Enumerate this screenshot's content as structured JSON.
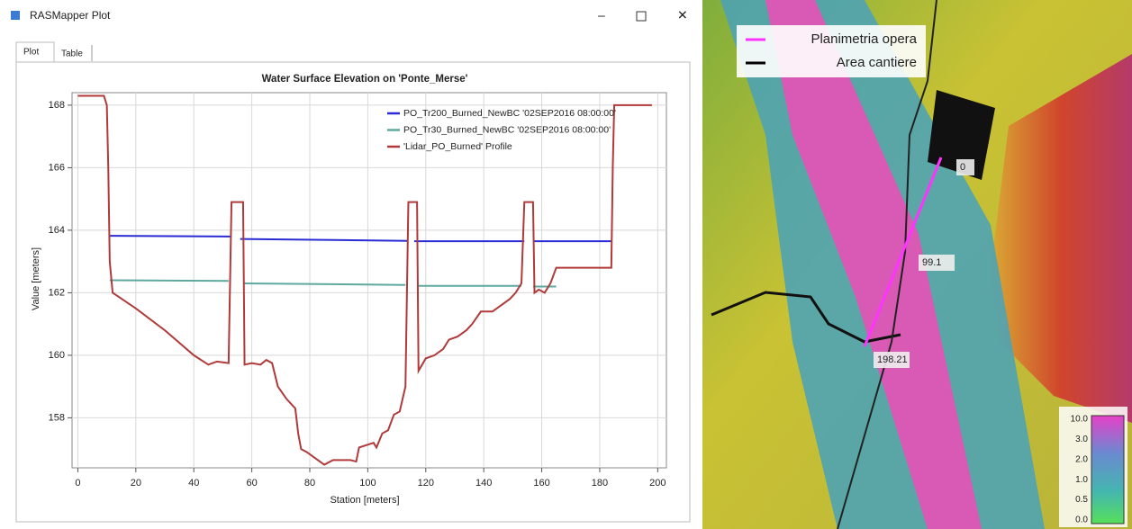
{
  "window": {
    "title": "RASMapper Plot",
    "tabs": [
      "Plot",
      "Table"
    ]
  },
  "chart_data": {
    "type": "line",
    "title": "Water Surface Elevation on 'Ponte_Merse'",
    "x_label": "Station [meters]",
    "y_label": "Value [meters]",
    "xlim": [
      -2,
      203
    ],
    "ylim": [
      156.4,
      168.4
    ],
    "xticks": [
      0,
      20,
      40,
      60,
      80,
      100,
      120,
      140,
      160,
      180,
      200
    ],
    "yticks": [
      158,
      160,
      162,
      164,
      166,
      168
    ],
    "grid": true,
    "legend": "upper right",
    "series": [
      {
        "name": "PO_Tr200_Burned_NewBC '02SEP2016 08:00:00'",
        "color": "#2b2bd6",
        "x": [
          11,
          53,
          53.5,
          56,
          114,
          114.5,
          116,
          154,
          154.5,
          157,
          184
        ],
        "values": [
          163.82,
          163.8,
          null,
          163.72,
          163.66,
          null,
          163.65,
          163.65,
          null,
          163.65,
          163.65
        ]
      },
      {
        "name": "PO_Tr30_Burned_NewBC '02SEP2016 08:00:00'",
        "color": "#5fa8a0",
        "x": [
          11,
          52,
          52.5,
          57,
          113,
          113.5,
          117,
          153,
          153.5,
          157,
          165
        ],
        "values": [
          162.4,
          162.38,
          null,
          162.3,
          162.25,
          null,
          162.22,
          162.22,
          null,
          162.2,
          162.2
        ]
      },
      {
        "name": "'Lidar_PO_Burned' Profile",
        "color": "#b03a3a",
        "x": [
          0,
          9,
          10,
          10.5,
          11,
          12,
          20,
          30,
          40,
          45,
          48,
          52,
          53,
          57,
          57.5,
          60,
          63,
          65,
          67,
          69,
          72,
          75,
          76,
          77,
          79,
          82,
          85,
          88,
          94,
          96,
          97,
          102,
          103,
          105,
          107,
          109,
          111,
          113,
          114,
          117,
          117.5,
          120,
          123,
          126,
          128,
          131,
          134,
          136,
          139,
          143,
          146,
          149,
          151,
          153,
          154,
          157,
          157.5,
          159,
          161,
          163,
          165,
          184,
          184.5,
          185,
          198
        ],
        "values": [
          168.3,
          168.3,
          168.0,
          166,
          163,
          162,
          161.5,
          160.8,
          160.0,
          159.7,
          159.8,
          159.75,
          164.9,
          164.9,
          159.7,
          159.75,
          159.7,
          159.85,
          159.75,
          159.0,
          158.6,
          158.3,
          157.5,
          157.0,
          156.9,
          156.7,
          156.5,
          156.65,
          156.65,
          156.6,
          157.05,
          157.2,
          157.05,
          157.5,
          157.6,
          158.1,
          158.2,
          159.0,
          164.9,
          164.9,
          159.5,
          159.9,
          160.0,
          160.2,
          160.5,
          160.6,
          160.8,
          161.0,
          161.4,
          161.4,
          161.6,
          161.8,
          162.0,
          162.3,
          164.9,
          164.9,
          162.0,
          162.1,
          162.0,
          162.3,
          162.8,
          162.8,
          166,
          168.0,
          168.0
        ]
      }
    ]
  },
  "map": {
    "legend": [
      {
        "label": "Planimetria opera",
        "color": "#ff33ff"
      },
      {
        "label": "Area cantiere",
        "color": "#000000"
      }
    ],
    "stations": [
      "0",
      "99.1",
      "198.21"
    ],
    "colorbar": [
      "10.0",
      "3.0",
      "2.0",
      "1.0",
      "0.5",
      "0.0"
    ]
  }
}
